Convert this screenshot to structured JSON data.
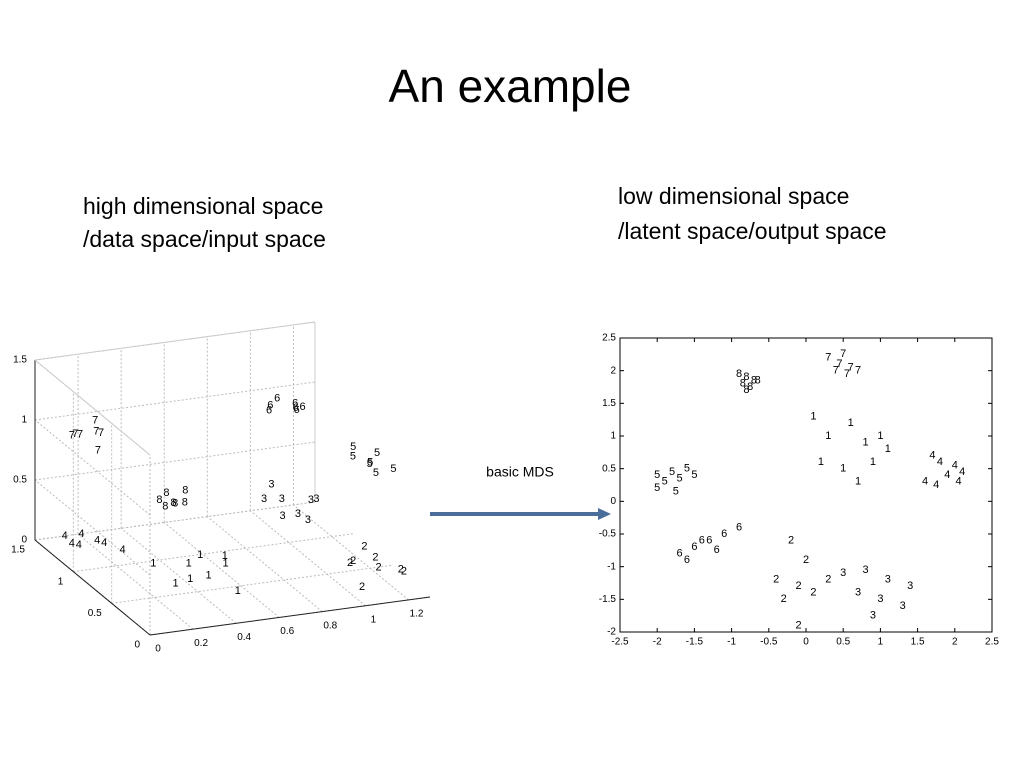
{
  "slide": {
    "title": "An example",
    "left_caption": [
      "high dimensional space",
      "/data space/input space"
    ],
    "right_caption": [
      "low dimensional space",
      "/latent space/output space"
    ],
    "arrow_label": "basic MDS"
  },
  "chart_data": [
    {
      "type": "scatter3d",
      "grid": true,
      "xlim": [
        0,
        1.3
      ],
      "ylim": [
        0,
        1.5
      ],
      "zlim": [
        0,
        1.5
      ],
      "xticks": [
        0,
        0.2,
        0.4,
        0.6,
        0.8,
        1,
        1.2
      ],
      "yticks": [
        0,
        0.5,
        1,
        1.5
      ],
      "zticks": [
        0,
        0.5,
        1,
        1.5
      ],
      "series": [
        {
          "name": "1",
          "color": "#000000",
          "x": [
            0.3,
            0.4,
            0.5,
            0.6,
            0.45,
            0.55,
            0.35,
            0.65,
            0.5
          ],
          "y": [
            0.8,
            0.6,
            0.9,
            0.7,
            0.5,
            0.4,
            0.65,
            0.85,
            0.75
          ],
          "z": [
            0.1,
            0.05,
            0.0,
            0.08,
            0.12,
            0.02,
            0.0,
            0.05,
            0.15
          ]
        },
        {
          "name": "2",
          "color": "#000000",
          "x": [
            1.0,
            1.05,
            1.1,
            1.15,
            1.2,
            1.02,
            1.12,
            1.25
          ],
          "y": [
            0.2,
            0.3,
            0.15,
            0.25,
            0.1,
            0.1,
            0.35,
            0.2
          ],
          "z": [
            0.25,
            0.2,
            0.3,
            0.15,
            0.2,
            0.1,
            0.28,
            0.12
          ]
        },
        {
          "name": "3",
          "color": "#000000",
          "x": [
            0.85,
            0.95,
            1.05,
            0.9,
            1.0,
            1.1,
            0.92,
            1.0
          ],
          "y": [
            0.9,
            0.95,
            0.85,
            0.8,
            0.88,
            0.92,
            1.0,
            0.75
          ],
          "z": [
            0.45,
            0.4,
            0.42,
            0.35,
            0.3,
            0.38,
            0.5,
            0.32
          ]
        },
        {
          "name": "4",
          "color": "#000000",
          "x": [
            0.1,
            0.15,
            0.2,
            0.25,
            0.3,
            0.18,
            0.12
          ],
          "y": [
            1.3,
            1.35,
            1.25,
            1.3,
            1.2,
            1.4,
            1.45
          ],
          "z": [
            0.05,
            0.0,
            0.08,
            0.02,
            0.0,
            0.06,
            0.03
          ]
        },
        {
          "name": "5",
          "color": "#000000",
          "x": [
            1.12,
            1.18,
            1.25,
            1.2,
            1.28,
            1.15,
            1.22
          ],
          "y": [
            0.5,
            0.45,
            0.55,
            0.5,
            0.42,
            0.58,
            0.48
          ],
          "z": [
            0.95,
            0.9,
            0.92,
            0.88,
            0.85,
            0.98,
            0.8
          ]
        },
        {
          "name": "6",
          "color": "#000000",
          "x": [
            0.95,
            1.0,
            1.05,
            1.1,
            0.98,
            1.03,
            1.08
          ],
          "y": [
            1.1,
            1.15,
            1.05,
            1.1,
            1.2,
            1.0,
            1.12
          ],
          "z": [
            1.1,
            1.12,
            1.08,
            1.05,
            1.0,
            1.15,
            1.02
          ]
        },
        {
          "name": "7",
          "color": "#000000",
          "x": [
            0.08,
            0.12,
            0.16,
            0.2,
            0.1,
            0.15,
            0.18
          ],
          "y": [
            1.2,
            1.25,
            1.15,
            1.2,
            1.3,
            1.1,
            1.22
          ],
          "z": [
            1.02,
            0.98,
            1.05,
            1.0,
            0.95,
            0.92,
            1.1
          ]
        },
        {
          "name": "8",
          "color": "#000000",
          "x": [
            0.4,
            0.45,
            0.5,
            0.42,
            0.48,
            0.52,
            0.44
          ],
          "y": [
            1.0,
            1.05,
            0.95,
            0.98,
            1.02,
            1.0,
            0.93
          ],
          "z": [
            0.5,
            0.52,
            0.48,
            0.45,
            0.44,
            0.55,
            0.5
          ]
        }
      ]
    },
    {
      "type": "scatter",
      "grid": false,
      "xlim": [
        -2.5,
        2.5
      ],
      "ylim": [
        -2,
        2.5
      ],
      "xticks": [
        -2.5,
        -2,
        -1.5,
        -1,
        -0.5,
        0,
        0.5,
        1,
        1.5,
        2,
        2.5
      ],
      "yticks": [
        -2,
        -1.5,
        -1,
        -0.5,
        0,
        0.5,
        1,
        1.5,
        2,
        2.5
      ],
      "series": [
        {
          "name": "1",
          "color": "#000000",
          "x": [
            0.1,
            0.3,
            0.6,
            0.8,
            1.0,
            0.2,
            0.5,
            0.9,
            0.7,
            1.1
          ],
          "y": [
            1.3,
            1.0,
            1.2,
            0.9,
            1.0,
            0.6,
            0.5,
            0.6,
            0.3,
            0.8
          ]
        },
        {
          "name": "2",
          "color": "#000000",
          "x": [
            -0.2,
            0.0,
            -0.4,
            -0.1,
            0.3,
            -0.3,
            0.1,
            -0.1
          ],
          "y": [
            -0.6,
            -0.9,
            -1.2,
            -1.3,
            -1.2,
            -1.5,
            -1.4,
            -1.9
          ]
        },
        {
          "name": "3",
          "color": "#000000",
          "x": [
            0.5,
            0.8,
            1.1,
            1.4,
            0.7,
            1.0,
            1.3,
            0.9
          ],
          "y": [
            -1.1,
            -1.05,
            -1.2,
            -1.3,
            -1.4,
            -1.5,
            -1.6,
            -1.75
          ]
        },
        {
          "name": "4",
          "color": "#000000",
          "x": [
            1.7,
            1.8,
            2.0,
            2.1,
            1.6,
            1.9,
            2.05,
            1.75
          ],
          "y": [
            0.7,
            0.6,
            0.55,
            0.45,
            0.3,
            0.4,
            0.3,
            0.25
          ]
        },
        {
          "name": "5",
          "color": "#000000",
          "x": [
            -2.0,
            -1.8,
            -1.6,
            -1.9,
            -1.7,
            -1.5,
            -2.0,
            -1.75
          ],
          "y": [
            0.4,
            0.45,
            0.5,
            0.3,
            0.35,
            0.4,
            0.2,
            0.15
          ]
        },
        {
          "name": "6",
          "color": "#000000",
          "x": [
            -1.7,
            -1.5,
            -1.3,
            -1.1,
            -0.9,
            -1.6,
            -1.4,
            -1.2
          ],
          "y": [
            -0.8,
            -0.7,
            -0.6,
            -0.5,
            -0.4,
            -0.9,
            -0.6,
            -0.75
          ]
        },
        {
          "name": "7",
          "color": "#000000",
          "x": [
            0.3,
            0.45,
            0.6,
            0.4,
            0.55,
            0.7,
            0.5
          ],
          "y": [
            2.2,
            2.1,
            2.05,
            2.0,
            1.95,
            2.0,
            2.25
          ]
        },
        {
          "name": "8",
          "color": "#000000",
          "x": [
            -0.9,
            -0.8,
            -0.7,
            -0.85,
            -0.75,
            -0.65,
            -0.8
          ],
          "y": [
            1.95,
            1.9,
            1.85,
            1.8,
            1.75,
            1.85,
            1.7
          ]
        }
      ]
    }
  ]
}
